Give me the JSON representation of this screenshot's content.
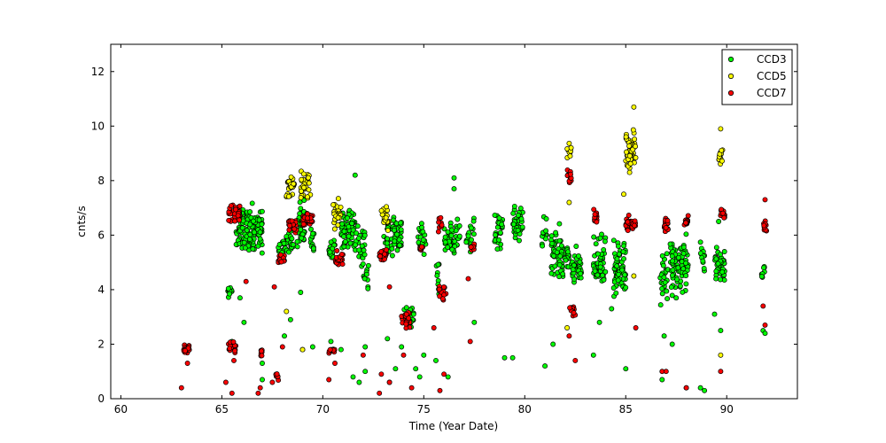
{
  "chart_data": {
    "type": "scatter",
    "title": "",
    "xlabel": "Time (Year Date)",
    "ylabel": "cnts/s",
    "xlim": [
      59.5,
      93.5
    ],
    "ylim": [
      0,
      13
    ],
    "xticks": [
      60,
      65,
      70,
      75,
      80,
      85,
      90
    ],
    "yticks": [
      0,
      2,
      4,
      6,
      8,
      10,
      12
    ],
    "grid": false,
    "legend": "top-right",
    "series": [
      {
        "name": "CCD3",
        "color": "#00ff00",
        "clusters": [
          {
            "x": [
              65.3,
              65.5
            ],
            "y": [
              3.5,
              4.3
            ],
            "n": 12
          },
          {
            "x": [
              65.7,
              66.0
            ],
            "y": [
              5.0,
              7.0
            ],
            "n": 20
          },
          {
            "x": [
              66.0,
              67.0
            ],
            "y": [
              5.0,
              7.3
            ],
            "n": 100
          },
          {
            "x": [
              67.8,
              68.2
            ],
            "y": [
              5.0,
              6.2
            ],
            "n": 18
          },
          {
            "x": [
              68.2,
              68.6
            ],
            "y": [
              5.2,
              6.6
            ],
            "n": 22
          },
          {
            "x": [
              68.7,
              69.1
            ],
            "y": [
              5.0,
              7.6
            ],
            "n": 35
          },
          {
            "x": [
              69.4,
              69.6
            ],
            "y": [
              5.2,
              6.5
            ],
            "n": 12
          },
          {
            "x": [
              70.3,
              70.6
            ],
            "y": [
              4.9,
              6.0
            ],
            "n": 18
          },
          {
            "x": [
              70.9,
              71.6
            ],
            "y": [
              5.3,
              7.2
            ],
            "n": 70
          },
          {
            "x": [
              71.6,
              72.1
            ],
            "y": [
              4.7,
              6.5
            ],
            "n": 25
          },
          {
            "x": [
              72.0,
              72.3
            ],
            "y": [
              3.9,
              5.1
            ],
            "n": 10
          },
          {
            "x": [
              73.0,
              73.3
            ],
            "y": [
              5.0,
              6.6
            ],
            "n": 15
          },
          {
            "x": [
              73.4,
              73.9
            ],
            "y": [
              5.0,
              7.0
            ],
            "n": 40
          },
          {
            "x": [
              74.0,
              74.5
            ],
            "y": [
              2.2,
              3.6
            ],
            "n": 15
          },
          {
            "x": [
              74.7,
              75.1
            ],
            "y": [
              5.0,
              6.8
            ],
            "n": 18
          },
          {
            "x": [
              75.6,
              75.8
            ],
            "y": [
              3.5,
              5.5
            ],
            "n": 10
          },
          {
            "x": [
              76.0,
              76.8
            ],
            "y": [
              5.0,
              7.0
            ],
            "n": 45
          },
          {
            "x": [
              77.1,
              77.5
            ],
            "y": [
              5.0,
              6.8
            ],
            "n": 18
          },
          {
            "x": [
              78.5,
              78.9
            ],
            "y": [
              5.0,
              7.3
            ],
            "n": 30
          },
          {
            "x": [
              79.4,
              79.9
            ],
            "y": [
              5.2,
              7.6
            ],
            "n": 40
          },
          {
            "x": [
              80.8,
              81.1
            ],
            "y": [
              5.3,
              7.0
            ],
            "n": 12
          },
          {
            "x": [
              81.3,
              81.9
            ],
            "y": [
              4.0,
              6.5
            ],
            "n": 55
          },
          {
            "x": [
              81.9,
              82.2
            ],
            "y": [
              4.5,
              5.8
            ],
            "n": 15
          },
          {
            "x": [
              82.3,
              82.8
            ],
            "y": [
              4.0,
              5.8
            ],
            "n": 35
          },
          {
            "x": [
              83.4,
              84.0
            ],
            "y": [
              3.5,
              6.4
            ],
            "n": 50
          },
          {
            "x": [
              84.4,
              85.0
            ],
            "y": [
              3.6,
              6.0
            ],
            "n": 60
          },
          {
            "x": [
              86.7,
              87.1
            ],
            "y": [
              3.2,
              5.7
            ],
            "n": 25
          },
          {
            "x": [
              87.2,
              88.1
            ],
            "y": [
              3.5,
              6.4
            ],
            "n": 80
          },
          {
            "x": [
              88.7,
              88.9
            ],
            "y": [
              4.3,
              6.1
            ],
            "n": 12
          },
          {
            "x": [
              89.4,
              89.9
            ],
            "y": [
              4.0,
              6.0
            ],
            "n": 40
          },
          {
            "x": [
              91.7,
              91.9
            ],
            "y": [
              4.2,
              5.0
            ],
            "n": 8
          }
        ],
        "outliers": [
          [
            65.5,
            2.1
          ],
          [
            65.9,
            3.7
          ],
          [
            66.1,
            2.8
          ],
          [
            67.0,
            0.7
          ],
          [
            67.0,
            1.3
          ],
          [
            68.1,
            2.3
          ],
          [
            68.4,
            2.9
          ],
          [
            68.9,
            3.9
          ],
          [
            69.0,
            1.8
          ],
          [
            69.5,
            1.9
          ],
          [
            70.4,
            2.1
          ],
          [
            70.9,
            1.8
          ],
          [
            71.6,
            8.2
          ],
          [
            72.1,
            1.9
          ],
          [
            72.1,
            1.0
          ],
          [
            71.8,
            0.6
          ],
          [
            71.5,
            0.8
          ],
          [
            73.2,
            2.2
          ],
          [
            73.6,
            1.1
          ],
          [
            73.9,
            1.9
          ],
          [
            74.6,
            1.1
          ],
          [
            74.8,
            0.8
          ],
          [
            75.0,
            1.6
          ],
          [
            75.6,
            1.4
          ],
          [
            76.5,
            8.1
          ],
          [
            76.5,
            7.7
          ],
          [
            76.2,
            0.8
          ],
          [
            77.5,
            2.8
          ],
          [
            79.0,
            1.5
          ],
          [
            79.4,
            1.5
          ],
          [
            81.0,
            1.2
          ],
          [
            81.4,
            2.0
          ],
          [
            83.4,
            1.6
          ],
          [
            83.7,
            2.8
          ],
          [
            84.3,
            3.3
          ],
          [
            85.0,
            1.1
          ],
          [
            86.8,
            0.7
          ],
          [
            86.9,
            2.3
          ],
          [
            87.3,
            2.0
          ],
          [
            87.5,
            3.7
          ],
          [
            88.0,
            0.4
          ],
          [
            88.7,
            0.4
          ],
          [
            88.9,
            0.3
          ],
          [
            89.4,
            3.1
          ],
          [
            89.7,
            2.5
          ],
          [
            89.6,
            6.5
          ],
          [
            91.8,
            2.5
          ],
          [
            91.9,
            2.4
          ]
        ]
      },
      {
        "name": "CCD5",
        "color": "#ffff00",
        "clusters": [
          {
            "x": [
              68.2,
              68.6
            ],
            "y": [
              7.0,
              8.6
            ],
            "n": 25
          },
          {
            "x": [
              68.9,
              69.4
            ],
            "y": [
              7.0,
              8.7
            ],
            "n": 30
          },
          {
            "x": [
              70.5,
              70.9
            ],
            "y": [
              6.0,
              7.5
            ],
            "n": 25
          },
          {
            "x": [
              72.9,
              73.3
            ],
            "y": [
              6.0,
              7.2
            ],
            "n": 20
          },
          {
            "x": [
              82.1,
              82.3
            ],
            "y": [
              8.3,
              9.6
            ],
            "n": 12
          },
          {
            "x": [
              85.0,
              85.5
            ],
            "y": [
              8.0,
              10.2
            ],
            "n": 60
          },
          {
            "x": [
              89.6,
              89.8
            ],
            "y": [
              8.4,
              9.5
            ],
            "n": 15
          }
        ],
        "outliers": [
          [
            68.2,
            3.2
          ],
          [
            69.0,
            1.8
          ],
          [
            73.3,
            0.6
          ],
          [
            82.1,
            2.6
          ],
          [
            82.2,
            7.2
          ],
          [
            84.9,
            7.5
          ],
          [
            85.4,
            10.7
          ],
          [
            85.4,
            4.5
          ],
          [
            89.7,
            9.9
          ],
          [
            89.7,
            1.6
          ]
        ]
      },
      {
        "name": "CCD7",
        "color": "#ff0000",
        "clusters": [
          {
            "x": [
              63.1,
              63.4
            ],
            "y": [
              1.6,
              2.0
            ],
            "n": 25
          },
          {
            "x": [
              65.3,
              65.7
            ],
            "y": [
              1.6,
              2.2
            ],
            "n": 20
          },
          {
            "x": [
              65.3,
              65.9
            ],
            "y": [
              6.3,
              7.2
            ],
            "n": 40
          },
          {
            "x": [
              66.9,
              67.0
            ],
            "y": [
              1.5,
              1.9
            ],
            "n": 8
          },
          {
            "x": [
              67.6,
              67.8
            ],
            "y": [
              0.6,
              1.1
            ],
            "n": 8
          },
          {
            "x": [
              67.8,
              68.1
            ],
            "y": [
              4.8,
              5.4
            ],
            "n": 15
          },
          {
            "x": [
              68.3,
              68.7
            ],
            "y": [
              6.0,
              6.8
            ],
            "n": 25
          },
          {
            "x": [
              69.0,
              69.5
            ],
            "y": [
              6.2,
              6.9
            ],
            "n": 30
          },
          {
            "x": [
              70.3,
              70.6
            ],
            "y": [
              1.6,
              1.9
            ],
            "n": 10
          },
          {
            "x": [
              70.6,
              71.0
            ],
            "y": [
              4.8,
              5.5
            ],
            "n": 25
          },
          {
            "x": [
              72.8,
              73.2
            ],
            "y": [
              4.9,
              5.6
            ],
            "n": 20
          },
          {
            "x": [
              73.9,
              74.3
            ],
            "y": [
              2.5,
              3.2
            ],
            "n": 25
          },
          {
            "x": [
              74.8,
              75.0
            ],
            "y": [
              5.3,
              5.8
            ],
            "n": 8
          },
          {
            "x": [
              75.7,
              75.9
            ],
            "y": [
              6.1,
              6.8
            ],
            "n": 8
          },
          {
            "x": [
              75.7,
              76.1
            ],
            "y": [
              3.5,
              4.3
            ],
            "n": 15
          },
          {
            "x": [
              77.3,
              77.5
            ],
            "y": [
              5.3,
              5.8
            ],
            "n": 8
          },
          {
            "x": [
              82.1,
              82.3
            ],
            "y": [
              7.8,
              8.6
            ],
            "n": 15
          },
          {
            "x": [
              82.2,
              82.5
            ],
            "y": [
              3.0,
              3.5
            ],
            "n": 15
          },
          {
            "x": [
              83.4,
              83.6
            ],
            "y": [
              6.2,
              7.0
            ],
            "n": 12
          },
          {
            "x": [
              85.0,
              85.5
            ],
            "y": [
              6.0,
              6.8
            ],
            "n": 40
          },
          {
            "x": [
              86.9,
              87.1
            ],
            "y": [
              6.0,
              6.8
            ],
            "n": 20
          },
          {
            "x": [
              87.9,
              88.1
            ],
            "y": [
              6.2,
              6.8
            ],
            "n": 15
          },
          {
            "x": [
              89.7,
              89.9
            ],
            "y": [
              6.5,
              7.1
            ],
            "n": 15
          },
          {
            "x": [
              91.8,
              92.0
            ],
            "y": [
              6.0,
              6.7
            ],
            "n": 10
          }
        ],
        "outliers": [
          [
            63.0,
            0.4
          ],
          [
            63.3,
            1.3
          ],
          [
            65.2,
            0.6
          ],
          [
            65.5,
            0.2
          ],
          [
            65.6,
            1.4
          ],
          [
            66.2,
            4.3
          ],
          [
            66.8,
            0.2
          ],
          [
            66.9,
            0.4
          ],
          [
            67.5,
            0.6
          ],
          [
            67.6,
            4.1
          ],
          [
            68.0,
            1.9
          ],
          [
            70.3,
            0.7
          ],
          [
            70.6,
            1.3
          ],
          [
            72.0,
            1.6
          ],
          [
            72.9,
            0.9
          ],
          [
            72.8,
            0.2
          ],
          [
            73.3,
            0.6
          ],
          [
            73.3,
            4.1
          ],
          [
            74.0,
            1.6
          ],
          [
            74.4,
            0.4
          ],
          [
            75.5,
            2.6
          ],
          [
            75.8,
            0.3
          ],
          [
            76.0,
            0.9
          ],
          [
            77.2,
            4.4
          ],
          [
            77.3,
            2.1
          ],
          [
            82.2,
            2.3
          ],
          [
            82.5,
            1.4
          ],
          [
            85.5,
            2.6
          ],
          [
            86.8,
            1.0
          ],
          [
            87.0,
            1.0
          ],
          [
            88.0,
            0.4
          ],
          [
            89.7,
            1.0
          ],
          [
            91.8,
            3.4
          ],
          [
            91.9,
            2.7
          ],
          [
            91.9,
            7.3
          ]
        ]
      }
    ]
  }
}
